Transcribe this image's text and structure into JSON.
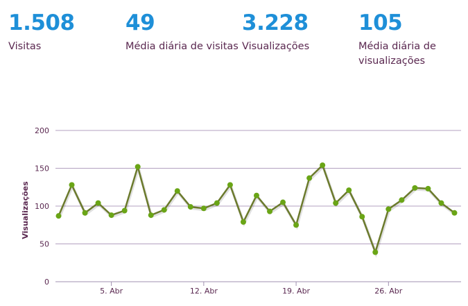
{
  "stats": [
    {
      "value": "1.508",
      "label": "Visitas"
    },
    {
      "value": "49",
      "label": "Média diária de visitas"
    },
    {
      "value": "3.228",
      "label": "Visualizações"
    },
    {
      "value": "105",
      "label": "Média diária de visualizações"
    }
  ],
  "colors": {
    "accent": "#1e8fd8",
    "label": "#5a2850",
    "line": "#6b7a2c",
    "point": "#6aa516",
    "grid": "#b3a0c0"
  },
  "chart_data": {
    "type": "line",
    "ylabel": "Visualizações",
    "xlabel": "",
    "ylim": [
      0,
      200
    ],
    "y_ticks": [
      0,
      50,
      100,
      150,
      200
    ],
    "x_ticks": [
      {
        "label": "5. Abr",
        "day": 5
      },
      {
        "label": "12. Abr",
        "day": 12
      },
      {
        "label": "19. Abr",
        "day": 19
      },
      {
        "label": "26. Abr",
        "day": 26
      }
    ],
    "grid": true,
    "series": [
      {
        "x": [
          1,
          2,
          3,
          4,
          5,
          6,
          7,
          8,
          9,
          10,
          11,
          12,
          13,
          14,
          15,
          16,
          17,
          18,
          19,
          20,
          21,
          22,
          23,
          24,
          25,
          26,
          27,
          28,
          29,
          30,
          31
        ],
        "values": [
          87,
          128,
          91,
          104,
          88,
          94,
          152,
          88,
          95,
          120,
          99,
          97,
          104,
          128,
          79,
          114,
          93,
          105,
          75,
          137,
          154,
          104,
          121,
          86,
          39,
          96,
          108,
          124,
          123,
          104,
          91
        ]
      }
    ]
  }
}
